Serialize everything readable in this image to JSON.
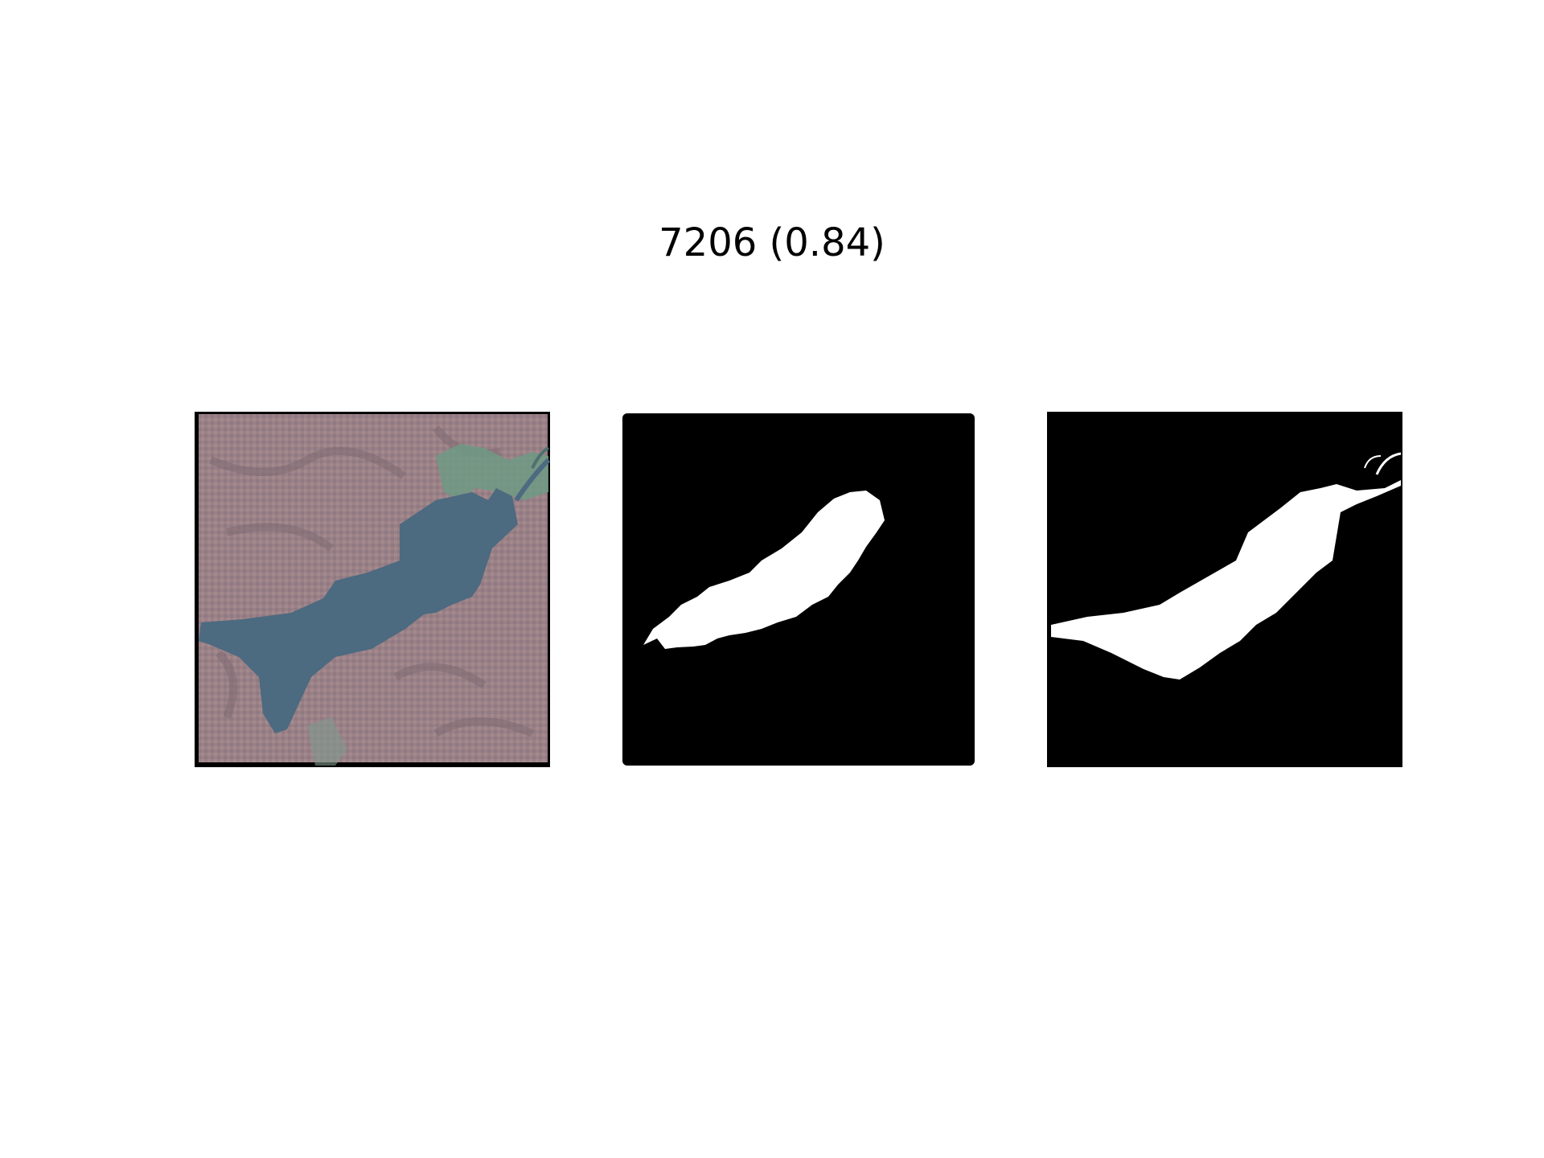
{
  "figure": {
    "title": "7206 (0.84)"
  },
  "panels": [
    {
      "id": "satellite-image",
      "kind": "rgb-image",
      "colors": {
        "land": "#9a7f86",
        "water": "#4d6a80",
        "vegetation": "#6f9a82"
      }
    },
    {
      "id": "predicted-mask",
      "kind": "binary-mask",
      "colors": {
        "background": "#000000",
        "foreground": "#ffffff"
      }
    },
    {
      "id": "ground-truth-mask",
      "kind": "binary-mask",
      "colors": {
        "background": "#000000",
        "foreground": "#ffffff"
      }
    }
  ]
}
